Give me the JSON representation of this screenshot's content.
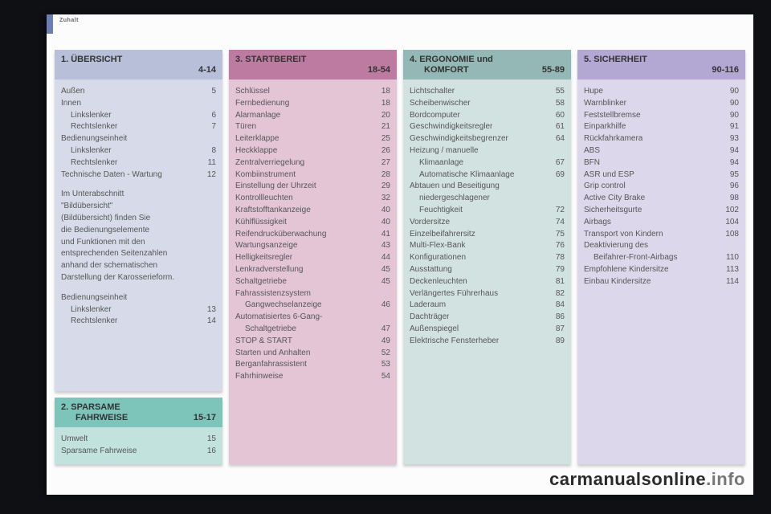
{
  "breadcrumb": "Zuhalt",
  "watermark_main": "carmanualsonline",
  "watermark_tail": ".info",
  "panels": {
    "s1": {
      "title": "1.  ÜBERSICHT",
      "range": "4-14",
      "headbg": "#b8bfd8",
      "bodybg": "#d7dae8",
      "items": [
        {
          "label": "Außen",
          "page": "5"
        },
        {
          "label": "Innen",
          "page": ""
        },
        {
          "label": "Linkslenker",
          "page": "6",
          "indent": true
        },
        {
          "label": "Rechtslenker",
          "page": "7",
          "indent": true
        },
        {
          "label": "Bedienungseinheit",
          "page": ""
        },
        {
          "label": "Linkslenker",
          "page": "8",
          "indent": true
        },
        {
          "label": "Rechtslenker",
          "page": "11",
          "indent": true
        },
        {
          "label": "Technische Daten - Wartung",
          "page": "12"
        }
      ],
      "para": [
        "Im Unterabschnitt",
        "\"Bildübersicht\"",
        "(Bildübersicht) finden Sie",
        "die Bedienungselemente",
        "und Funktionen mit den",
        "entsprechenden Seitenzahlen",
        "anhand der schematischen",
        "Darstellung der Karosserieform."
      ],
      "items2": [
        {
          "label": "Bedienungseinheit",
          "page": ""
        },
        {
          "label": "Linkslenker",
          "page": "13",
          "indent": true
        },
        {
          "label": "Rechtslenker",
          "page": "14",
          "indent": true
        }
      ]
    },
    "s2": {
      "title": "2.  SPARSAME",
      "title2": "FAHRWEISE",
      "range": "15-17",
      "items": [
        {
          "label": "Umwelt",
          "page": "15"
        },
        {
          "label": "Sparsame Fahrweise",
          "page": "16"
        }
      ]
    },
    "s3": {
      "title": "3.  STARTBEREIT",
      "range": "18-54",
      "items": [
        {
          "label": "Schlüssel",
          "page": "18"
        },
        {
          "label": "Fernbedienung",
          "page": "18"
        },
        {
          "label": "Alarmanlage",
          "page": "20"
        },
        {
          "label": "Türen",
          "page": "21"
        },
        {
          "label": "Leiterklappe",
          "page": "25"
        },
        {
          "label": "Heckklappe",
          "page": "26"
        },
        {
          "label": "Zentralverriegelung",
          "page": "27"
        },
        {
          "label": "Kombiinstrument",
          "page": "28"
        },
        {
          "label": "Einstellung der Uhrzeit",
          "page": "29"
        },
        {
          "label": "Kontrollleuchten",
          "page": "32"
        },
        {
          "label": "Kraftstofftankanzeige",
          "page": "40"
        },
        {
          "label": "Kühlflüssigkeit",
          "page": "40"
        },
        {
          "label": "Reifendrucküberwachung",
          "page": "41"
        },
        {
          "label": "Wartungsanzeige",
          "page": "43"
        },
        {
          "label": "Helligkeitsregler",
          "page": "44"
        },
        {
          "label": "Lenkradverstellung",
          "page": "45"
        },
        {
          "label": "Schaltgetriebe",
          "page": "45"
        },
        {
          "label": "Fahrassistenzsystem",
          "page": ""
        },
        {
          "label": "Gangwechselanzeige",
          "page": "46",
          "indent": true
        },
        {
          "label": "Automatisiertes 6-Gang-",
          "page": ""
        },
        {
          "label": "Schaltgetriebe",
          "page": "47",
          "indent": true
        },
        {
          "label": "STOP & START",
          "page": "49"
        },
        {
          "label": "Starten und Anhalten",
          "page": "52"
        },
        {
          "label": "Berganfahrassistent",
          "page": "53"
        },
        {
          "label": "Fahrhinweise",
          "page": "54"
        }
      ]
    },
    "s4": {
      "title": "4.  ERGONOMIE und",
      "title2": "KOMFORT",
      "range": "55-89",
      "items": [
        {
          "label": "Lichtschalter",
          "page": "55"
        },
        {
          "label": "Scheibenwischer",
          "page": "58"
        },
        {
          "label": "Bordcomputer",
          "page": "60"
        },
        {
          "label": "Geschwindigkeitsregler",
          "page": "61"
        },
        {
          "label": "Geschwindigkeitsbegrenzer",
          "page": "64"
        },
        {
          "label": "Heizung / manuelle",
          "page": ""
        },
        {
          "label": "Klimaanlage",
          "page": "67",
          "indent": true
        },
        {
          "label": "Automatische Klimaanlage",
          "page": "69",
          "indent": true
        },
        {
          "label": "Abtauen und Beseitigung",
          "page": ""
        },
        {
          "label": "niedergeschlagener",
          "page": "",
          "indent": true
        },
        {
          "label": "Feuchtigkeit",
          "page": "72",
          "indent": true
        },
        {
          "label": "Vordersitze",
          "page": "74"
        },
        {
          "label": "Einzelbeifahrersitz",
          "page": "75"
        },
        {
          "label": "Multi-Flex-Bank",
          "page": "76"
        },
        {
          "label": "Konfigurationen",
          "page": "78"
        },
        {
          "label": "Ausstattung",
          "page": "79"
        },
        {
          "label": "Deckenleuchten",
          "page": "81"
        },
        {
          "label": "Verlängertes Führerhaus",
          "page": "82"
        },
        {
          "label": "Laderaum",
          "page": "84"
        },
        {
          "label": "Dachträger",
          "page": "86"
        },
        {
          "label": "Außenspiegel",
          "page": "87"
        },
        {
          "label": "Elektrische Fensterheber",
          "page": "89"
        }
      ]
    },
    "s5": {
      "title": "5.  SICHERHEIT",
      "range": "90-116",
      "items": [
        {
          "label": "Hupe",
          "page": "90"
        },
        {
          "label": "Warnblinker",
          "page": "90"
        },
        {
          "label": "Feststellbremse",
          "page": "90"
        },
        {
          "label": "Einparkhilfe",
          "page": "91"
        },
        {
          "label": "Rückfahrkamera",
          "page": "93"
        },
        {
          "label": "ABS",
          "page": "94"
        },
        {
          "label": "BFN",
          "page": "94"
        },
        {
          "label": "ASR und ESP",
          "page": "95"
        },
        {
          "label": "Grip control",
          "page": "96"
        },
        {
          "label": "Active City Brake",
          "page": "98"
        },
        {
          "label": "Sicherheitsgurte",
          "page": "102"
        },
        {
          "label": "Airbags",
          "page": "104"
        },
        {
          "label": "Transport von Kindern",
          "page": "108"
        },
        {
          "label": "Deaktivierung des",
          "page": ""
        },
        {
          "label": "Beifahrer-Front-Airbags",
          "page": "110",
          "indent": true
        },
        {
          "label": "Empfohlene Kindersitze",
          "page": "113"
        },
        {
          "label": "Einbau Kindersitze",
          "page": "114"
        }
      ]
    }
  }
}
